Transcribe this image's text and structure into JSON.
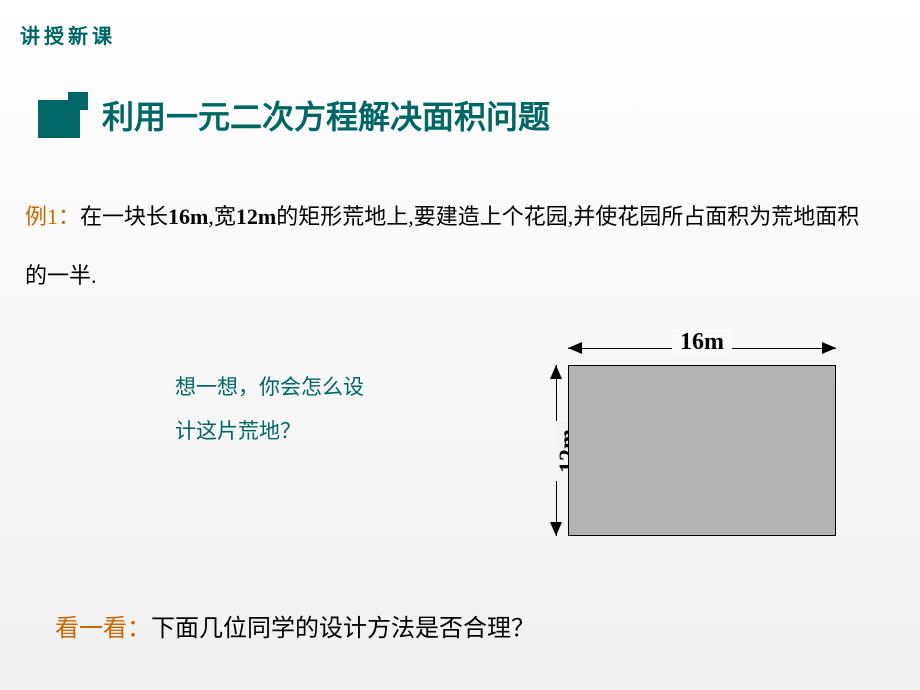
{
  "header": {
    "label": "讲授新课"
  },
  "section": {
    "title": "利用一元二次方程解决面积问题",
    "icon_color": "#006666"
  },
  "example": {
    "label": "例1：",
    "text_part1": "在一块长",
    "dim1": "16m",
    "text_part2": ",宽",
    "dim2": "12m",
    "text_part3": "的矩形荒地上,要建造上个花园,并使花园所占面积为荒地面积的一半."
  },
  "think": {
    "line1": "想一想，你会怎么设",
    "line2": "计这片荒地？"
  },
  "diagram": {
    "width_label": "16m",
    "height_label": "12m",
    "fill_color": "#b3b3b3",
    "border_color": "#000000"
  },
  "look": {
    "label": "看一看：",
    "text": "下面几位同学的设计方法是否合理？"
  },
  "colors": {
    "teal": "#006666",
    "orange": "#cc6600",
    "black": "#000000",
    "gray": "#b3b3b3"
  }
}
